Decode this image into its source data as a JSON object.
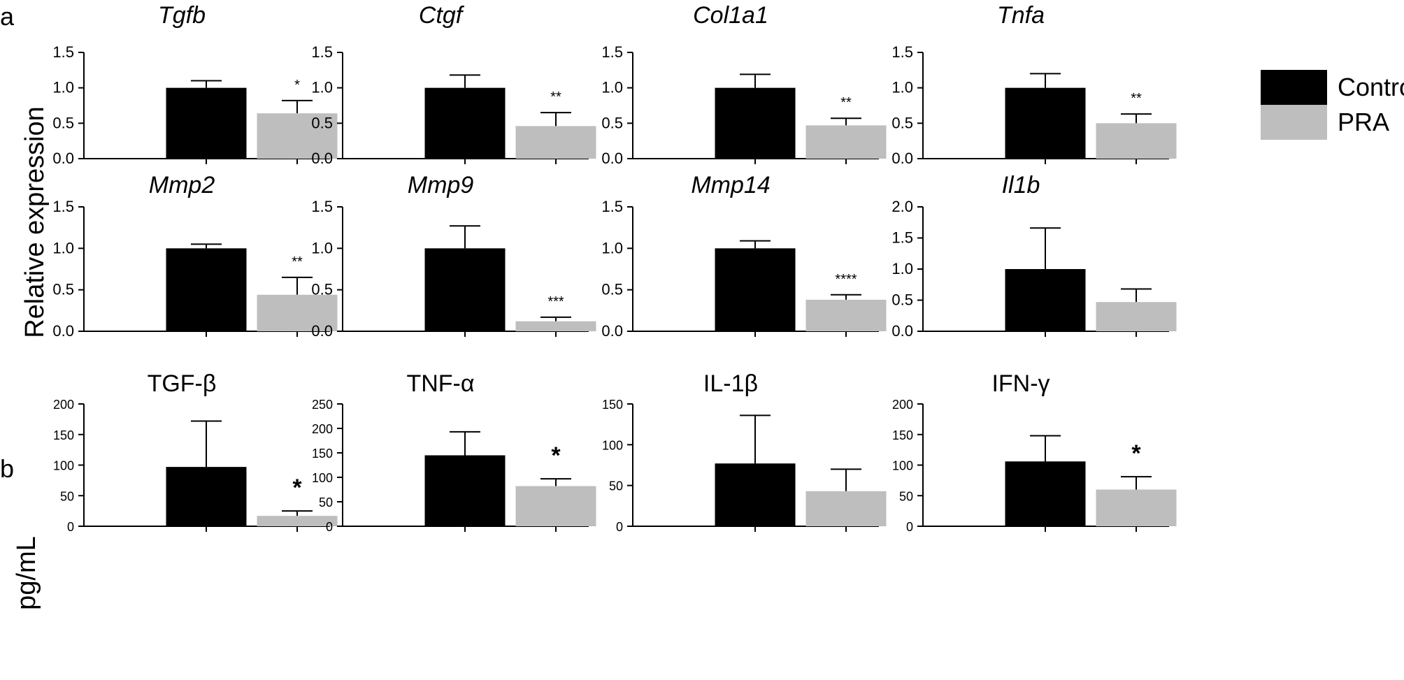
{
  "panel_labels": {
    "a": "a",
    "b": "b"
  },
  "ylabels": {
    "a": "Relative expression",
    "b": "pg/mL"
  },
  "colors": {
    "control": "#000000",
    "pra": "#bebebe",
    "axis": "#000000"
  },
  "legend": {
    "entries": [
      "Control",
      "PRA"
    ]
  },
  "chart_data": [
    {
      "type": "bar",
      "panel": "a",
      "title": "Tgfb",
      "categories": [
        "Control",
        "PRA"
      ],
      "values": [
        1.0,
        0.64
      ],
      "errors": [
        0.1,
        0.18
      ],
      "ylim": [
        0,
        1.5
      ],
      "ticks": [
        "0.0",
        "0.5",
        "1.0",
        "1.5"
      ],
      "significance": [
        "",
        "*"
      ]
    },
    {
      "type": "bar",
      "panel": "a",
      "title": "Ctgf",
      "categories": [
        "Control",
        "PRA"
      ],
      "values": [
        1.0,
        0.46
      ],
      "errors": [
        0.18,
        0.19
      ],
      "ylim": [
        0,
        1.5
      ],
      "ticks": [
        "0.0",
        "0.5",
        "1.0",
        "1.5"
      ],
      "significance": [
        "",
        "**"
      ]
    },
    {
      "type": "bar",
      "panel": "a",
      "title": "Col1a1",
      "categories": [
        "Control",
        "PRA"
      ],
      "values": [
        1.0,
        0.47
      ],
      "errors": [
        0.19,
        0.1
      ],
      "ylim": [
        0,
        1.5
      ],
      "ticks": [
        "0.0",
        "0.5",
        "1.0",
        "1.5"
      ],
      "significance": [
        "",
        "**"
      ]
    },
    {
      "type": "bar",
      "panel": "a",
      "title": "Tnfa",
      "categories": [
        "Control",
        "PRA"
      ],
      "values": [
        1.0,
        0.5
      ],
      "errors": [
        0.2,
        0.13
      ],
      "ylim": [
        0,
        1.5
      ],
      "ticks": [
        "0.0",
        "0.5",
        "1.0",
        "1.5"
      ],
      "significance": [
        "",
        "**"
      ]
    },
    {
      "type": "bar",
      "panel": "a",
      "title": "Mmp2",
      "categories": [
        "Control",
        "PRA"
      ],
      "values": [
        1.0,
        0.44
      ],
      "errors": [
        0.05,
        0.21
      ],
      "ylim": [
        0,
        1.5
      ],
      "ticks": [
        "0.0",
        "0.5",
        "1.0",
        "1.5"
      ],
      "significance": [
        "",
        "**"
      ]
    },
    {
      "type": "bar",
      "panel": "a",
      "title": "Mmp9",
      "categories": [
        "Control",
        "PRA"
      ],
      "values": [
        1.0,
        0.12
      ],
      "errors": [
        0.27,
        0.05
      ],
      "ylim": [
        0,
        1.5
      ],
      "ticks": [
        "0.0",
        "0.5",
        "1.0",
        "1.5"
      ],
      "significance": [
        "",
        "***"
      ]
    },
    {
      "type": "bar",
      "panel": "a",
      "title": "Mmp14",
      "categories": [
        "Control",
        "PRA"
      ],
      "values": [
        1.0,
        0.38
      ],
      "errors": [
        0.09,
        0.06
      ],
      "ylim": [
        0,
        1.5
      ],
      "ticks": [
        "0.0",
        "0.5",
        "1.0",
        "1.5"
      ],
      "significance": [
        "",
        "****"
      ]
    },
    {
      "type": "bar",
      "panel": "a",
      "title": "Il1b",
      "categories": [
        "Control",
        "PRA"
      ],
      "values": [
        1.0,
        0.47
      ],
      "errors": [
        0.66,
        0.21
      ],
      "ylim": [
        0,
        2.0
      ],
      "ticks": [
        "0.0",
        "0.5",
        "1.0",
        "1.5",
        "2.0"
      ],
      "significance": [
        "",
        ""
      ]
    },
    {
      "type": "bar",
      "panel": "b",
      "title": "TGF-β",
      "categories": [
        "Control",
        "PRA"
      ],
      "values": [
        97,
        17
      ],
      "errors": [
        75,
        8
      ],
      "ylim": [
        0,
        200
      ],
      "ticks": [
        "0",
        "50",
        "100",
        "150",
        "200"
      ],
      "significance": [
        "",
        "*"
      ]
    },
    {
      "type": "bar",
      "panel": "b",
      "title": "TNF-α",
      "categories": [
        "Control",
        "PRA"
      ],
      "values": [
        145,
        82
      ],
      "errors": [
        48,
        15
      ],
      "ylim": [
        0,
        250
      ],
      "ticks": [
        "0",
        "50",
        "100",
        "150",
        "200",
        "250"
      ],
      "significance": [
        "",
        "*"
      ]
    },
    {
      "type": "bar",
      "panel": "b",
      "title": "IL-1β",
      "categories": [
        "Control",
        "PRA"
      ],
      "values": [
        77,
        43
      ],
      "errors": [
        59,
        27
      ],
      "ylim": [
        0,
        150
      ],
      "ticks": [
        "0",
        "50",
        "100",
        "150"
      ],
      "significance": [
        "",
        ""
      ]
    },
    {
      "type": "bar",
      "panel": "b",
      "title": "IFN-γ",
      "categories": [
        "Control",
        "PRA"
      ],
      "values": [
        106,
        60
      ],
      "errors": [
        42,
        21
      ],
      "ylim": [
        0,
        200
      ],
      "ticks": [
        "0",
        "50",
        "100",
        "150",
        "200"
      ],
      "significance": [
        "",
        "*"
      ]
    }
  ]
}
